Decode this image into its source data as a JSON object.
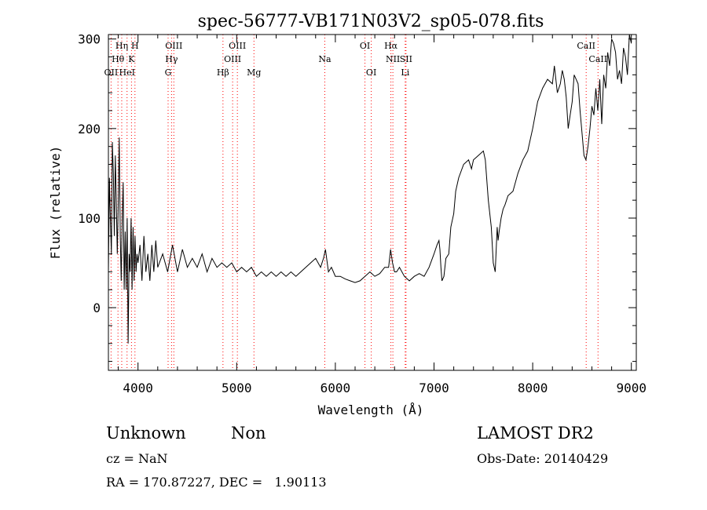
{
  "chart_data": {
    "type": "line",
    "title": "spec-56777-VB171N03V2_sp05-078.fits",
    "xlabel": "Wavelength (Å)",
    "ylabel": "Flux (relative)",
    "xlim": [
      3700,
      9050
    ],
    "ylim": [
      -70,
      305
    ],
    "xticks": [
      4000,
      5000,
      6000,
      7000,
      8000,
      9000
    ],
    "yticks": [
      0,
      100,
      200,
      300
    ],
    "grid": false,
    "line_color": "#000000",
    "marker_color": "#ff0000",
    "series": [
      {
        "x": [
          3700,
          3710,
          3720,
          3730,
          3740,
          3750,
          3760,
          3770,
          3780,
          3790,
          3800,
          3810,
          3820,
          3830,
          3840,
          3850,
          3860,
          3870,
          3880,
          3890,
          3900,
          3910,
          3920,
          3930,
          3940,
          3950,
          3960,
          3970,
          3980,
          3990,
          4000,
          4020,
          4040,
          4060,
          4080,
          4100,
          4120,
          4140,
          4160,
          4180,
          4200,
          4250,
          4300,
          4350,
          4400,
          4450,
          4500,
          4550,
          4600,
          4650,
          4700,
          4750,
          4800,
          4850,
          4900,
          4950,
          5000,
          5050,
          5100,
          5150,
          5200,
          5250,
          5300,
          5350,
          5400,
          5450,
          5500,
          5550,
          5600,
          5650,
          5700,
          5750,
          5800,
          5850,
          5880,
          5900,
          5930,
          5960,
          6000,
          6050,
          6100,
          6150,
          6200,
          6250,
          6300,
          6350,
          6400,
          6450,
          6500,
          6540,
          6560,
          6580,
          6600,
          6620,
          6650,
          6700,
          6750,
          6800,
          6850,
          6900,
          6950,
          7000,
          7030,
          7050,
          7060,
          7070,
          7080,
          7100,
          7120,
          7150,
          7170,
          7200,
          7220,
          7250,
          7300,
          7350,
          7380,
          7400,
          7450,
          7500,
          7520,
          7550,
          7580,
          7600,
          7620,
          7640,
          7650,
          7660,
          7680,
          7700,
          7720,
          7750,
          7800,
          7850,
          7900,
          7950,
          8000,
          8050,
          8100,
          8150,
          8200,
          8220,
          8250,
          8280,
          8300,
          8320,
          8340,
          8360,
          8380,
          8400,
          8420,
          8440,
          8460,
          8480,
          8500,
          8520,
          8540,
          8560,
          8580,
          8600,
          8620,
          8640,
          8660,
          8680,
          8700,
          8720,
          8740,
          8760,
          8780,
          8800,
          8820,
          8840,
          8860,
          8880,
          8900,
          8920,
          8940,
          8960,
          8980,
          9000
        ],
        "y": [
          40,
          145,
          100,
          60,
          185,
          150,
          80,
          170,
          120,
          60,
          120,
          190,
          80,
          30,
          100,
          140,
          20,
          85,
          20,
          100,
          -40,
          60,
          40,
          100,
          20,
          90,
          30,
          80,
          40,
          60,
          50,
          70,
          30,
          80,
          40,
          60,
          30,
          70,
          40,
          75,
          45,
          60,
          40,
          70,
          40,
          65,
          45,
          55,
          45,
          60,
          40,
          55,
          45,
          50,
          45,
          50,
          40,
          45,
          40,
          45,
          35,
          40,
          35,
          40,
          35,
          40,
          35,
          40,
          35,
          40,
          45,
          50,
          55,
          45,
          55,
          65,
          40,
          45,
          35,
          35,
          32,
          30,
          28,
          30,
          35,
          40,
          35,
          38,
          45,
          45,
          65,
          50,
          40,
          40,
          45,
          35,
          30,
          35,
          38,
          35,
          45,
          60,
          70,
          75,
          65,
          45,
          30,
          35,
          55,
          60,
          90,
          105,
          130,
          145,
          160,
          165,
          155,
          165,
          170,
          175,
          165,
          120,
          90,
          50,
          40,
          90,
          75,
          85,
          100,
          110,
          115,
          125,
          130,
          150,
          165,
          175,
          200,
          230,
          245,
          255,
          250,
          270,
          240,
          250,
          265,
          255,
          235,
          200,
          215,
          230,
          260,
          255,
          250,
          220,
          195,
          170,
          165,
          180,
          200,
          225,
          215,
          245,
          220,
          255,
          205,
          260,
          245,
          285,
          270,
          300,
          295,
          285,
          255,
          265,
          250,
          290,
          280,
          260,
          305,
          295
        ]
      }
    ],
    "line_labels": [
      {
        "text": "Hη",
        "x": 3835,
        "row": 0
      },
      {
        "text": "H",
        "x": 3969,
        "row": 0
      },
      {
        "text": "Hθ",
        "x": 3797,
        "row": 1
      },
      {
        "text": "K",
        "x": 3934,
        "row": 1
      },
      {
        "text": "OII",
        "x": 3727,
        "row": 2
      },
      {
        "text": "HeI",
        "x": 3889,
        "row": 2
      },
      {
        "text": "OIII",
        "x": 4363,
        "row": 0
      },
      {
        "text": "Hγ",
        "x": 4340,
        "row": 1
      },
      {
        "text": "G",
        "x": 4305,
        "row": 2
      },
      {
        "text": "OIII",
        "x": 5007,
        "row": 0
      },
      {
        "text": "OIII",
        "x": 4959,
        "row": 1
      },
      {
        "text": "Hβ",
        "x": 4861,
        "row": 2
      },
      {
        "text": "Mg",
        "x": 5175,
        "row": 2
      },
      {
        "text": "Na",
        "x": 5893,
        "row": 1
      },
      {
        "text": "OI",
        "x": 6300,
        "row": 0
      },
      {
        "text": "OI",
        "x": 6364,
        "row": 2
      },
      {
        "text": "Hα",
        "x": 6563,
        "row": 0
      },
      {
        "text": "NII",
        "x": 6583,
        "row": 1
      },
      {
        "text": "SII",
        "x": 6716,
        "row": 1
      },
      {
        "text": "Li",
        "x": 6708,
        "row": 2
      },
      {
        "text": "CaII",
        "x": 8542,
        "row": 0
      },
      {
        "text": "CaII",
        "x": 8662,
        "row": 1
      }
    ],
    "marker_lines": [
      3727,
      3797,
      3835,
      3889,
      3934,
      3969,
      4305,
      4340,
      4363,
      4861,
      4959,
      5007,
      5175,
      5893,
      6300,
      6364,
      6563,
      6583,
      6708,
      6716,
      8542,
      8662
    ]
  },
  "info": {
    "class": "Unknown",
    "subclass": "Non",
    "survey": "LAMOST DR2",
    "cz": "cz = NaN",
    "obs_date": "Obs-Date: 20140429",
    "coords": "RA = 170.87227, DEC =   1.90113"
  }
}
